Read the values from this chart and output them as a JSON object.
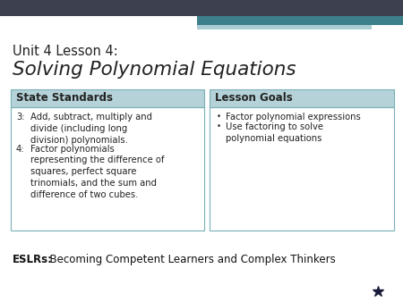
{
  "bg_color": "#ffffff",
  "corner_bar1_color": "#3d404f",
  "corner_bar2_color": "#3d7f8a",
  "corner_bar3_color": "#aacdd4",
  "title_line1": "Unit 4 Lesson 4:",
  "title_line2": "Solving Polynomial Equations",
  "title_line1_size": 10.5,
  "title_line2_size": 15.5,
  "header_bg": "#b5d2d8",
  "header_left": "State Standards",
  "header_right": "Lesson Goals",
  "header_fontsize": 8.5,
  "box_border_color": "#7ab0b8",
  "left_item1_num": "3:",
  "left_item1_text": "Add, subtract, multiply and\ndivide (including long\ndivision) polynomials.",
  "left_item2_num": "4:",
  "left_item2_text": "Factor polynomials\nrepresenting the difference of\nsquares, perfect square\ntrinomials, and the sum and\ndifference of two cubes.",
  "right_item1": "Factor polynomial expressions",
  "right_item2": "Use factoring to solve\npolynomial equations",
  "content_fontsize": 7.2,
  "bullet": "•",
  "eslr_bold": "ESLRs:",
  "eslr_normal": "  Becoming Competent Learners and Complex Thinkers",
  "eslr_fontsize": 8.5,
  "star_color": "#1a1a3a",
  "text_color": "#222222"
}
